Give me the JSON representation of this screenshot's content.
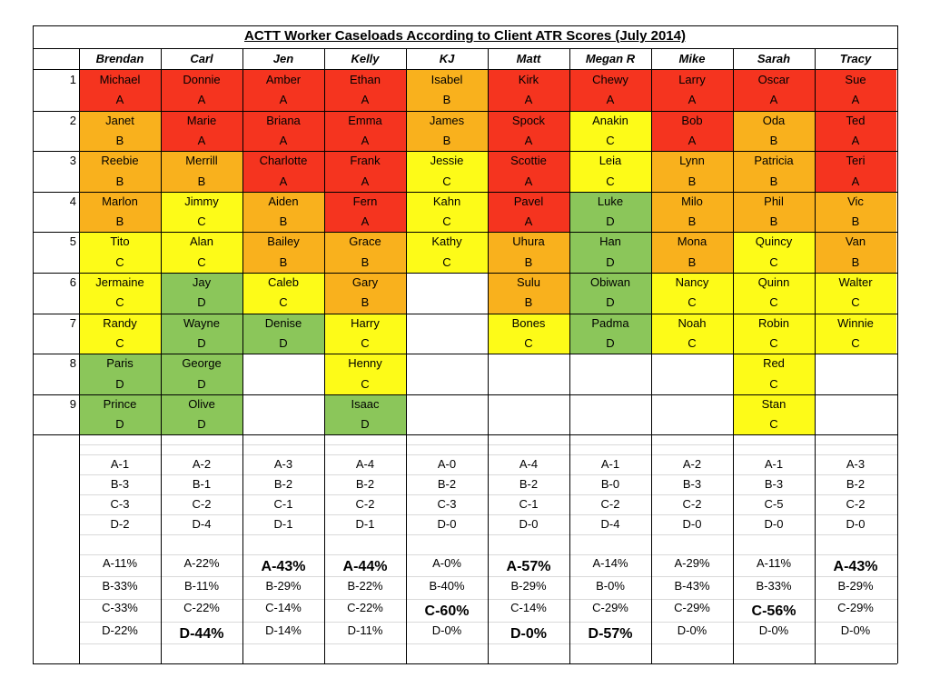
{
  "title": "ACTT Worker Caseloads According to Client ATR Scores (July 2014)",
  "colors": {
    "A": "#f5341f",
    "B": "#f9b11d",
    "C": "#fdfb18",
    "D": "#8bc65a"
  },
  "workers": [
    "Brendan",
    "Carl",
    "Jen",
    "Kelly",
    "KJ",
    "Matt",
    "Megan R",
    "Mike",
    "Sarah",
    "Tracy"
  ],
  "row_numbers": [
    "1",
    "2",
    "3",
    "4",
    "5",
    "6",
    "7",
    "8",
    "9"
  ],
  "clients": [
    [
      [
        "Michael",
        "A"
      ],
      [
        "Janet",
        "B"
      ],
      [
        "Reebie",
        "B"
      ],
      [
        "Marlon",
        "B"
      ],
      [
        "Tito",
        "C"
      ],
      [
        "Jermaine",
        "C"
      ],
      [
        "Randy",
        "C"
      ],
      [
        "Paris",
        "D"
      ],
      [
        "Prince",
        "D"
      ]
    ],
    [
      [
        "Donnie",
        "A"
      ],
      [
        "Marie",
        "A"
      ],
      [
        "Merrill",
        "B"
      ],
      [
        "Jimmy",
        "C"
      ],
      [
        "Alan",
        "C"
      ],
      [
        "Jay",
        "D"
      ],
      [
        "Wayne",
        "D"
      ],
      [
        "George",
        "D"
      ],
      [
        "Olive",
        "D"
      ]
    ],
    [
      [
        "Amber",
        "A"
      ],
      [
        "Briana",
        "A"
      ],
      [
        "Charlotte",
        "A"
      ],
      [
        "Aiden",
        "B"
      ],
      [
        "Bailey",
        "B"
      ],
      [
        "Caleb",
        "C"
      ],
      [
        "Denise",
        "D"
      ]
    ],
    [
      [
        "Ethan",
        "A"
      ],
      [
        "Emma",
        "A"
      ],
      [
        "Frank",
        "A"
      ],
      [
        "Fern",
        "A"
      ],
      [
        "Grace",
        "B"
      ],
      [
        "Gary",
        "B"
      ],
      [
        "Harry",
        "C"
      ],
      [
        "Henny",
        "C"
      ],
      [
        "Isaac",
        "D"
      ]
    ],
    [
      [
        "Isabel",
        "B"
      ],
      [
        "James",
        "B"
      ],
      [
        "Jessie",
        "C"
      ],
      [
        "Kahn",
        "C"
      ],
      [
        "Kathy",
        "C"
      ]
    ],
    [
      [
        "Kirk",
        "A"
      ],
      [
        "Spock",
        "A"
      ],
      [
        "Scottie",
        "A"
      ],
      [
        "Pavel",
        "A"
      ],
      [
        "Uhura",
        "B"
      ],
      [
        "Sulu",
        "B"
      ],
      [
        "Bones",
        "C"
      ]
    ],
    [
      [
        "Chewy",
        "A"
      ],
      [
        "Anakin",
        "C"
      ],
      [
        "Leia",
        "C"
      ],
      [
        "Luke",
        "D"
      ],
      [
        "Han",
        "D"
      ],
      [
        "Obiwan",
        "D"
      ],
      [
        "Padma",
        "D"
      ]
    ],
    [
      [
        "Larry",
        "A"
      ],
      [
        "Bob",
        "A"
      ],
      [
        "Lynn",
        "B"
      ],
      [
        "Milo",
        "B"
      ],
      [
        "Mona",
        "B"
      ],
      [
        "Nancy",
        "C"
      ],
      [
        "Noah",
        "C"
      ]
    ],
    [
      [
        "Oscar",
        "A"
      ],
      [
        "Oda",
        "B"
      ],
      [
        "Patricia",
        "B"
      ],
      [
        "Phil",
        "B"
      ],
      [
        "Quincy",
        "C"
      ],
      [
        "Quinn",
        "C"
      ],
      [
        "Robin",
        "C"
      ],
      [
        "Red",
        "C"
      ],
      [
        "Stan",
        "C"
      ]
    ],
    [
      [
        "Sue",
        "A"
      ],
      [
        "Ted",
        "A"
      ],
      [
        "Teri",
        "A"
      ],
      [
        "Vic",
        "B"
      ],
      [
        "Van",
        "B"
      ],
      [
        "Walter",
        "C"
      ],
      [
        "Winnie",
        "C"
      ]
    ]
  ],
  "counts": [
    [
      "A-1",
      "B-3",
      "C-3",
      "D-2"
    ],
    [
      "A-2",
      "B-1",
      "C-2",
      "D-4"
    ],
    [
      "A-3",
      "B-2",
      "C-1",
      "D-1"
    ],
    [
      "A-4",
      "B-2",
      "C-2",
      "D-1"
    ],
    [
      "A-0",
      "B-2",
      "C-3",
      "D-0"
    ],
    [
      "A-4",
      "B-2",
      "C-1",
      "D-0"
    ],
    [
      "A-1",
      "B-0",
      "C-2",
      "D-4"
    ],
    [
      "A-2",
      "B-3",
      "C-2",
      "D-0"
    ],
    [
      "A-1",
      "B-3",
      "C-5",
      "D-0"
    ],
    [
      "A-3",
      "B-2",
      "C-2",
      "D-0"
    ]
  ],
  "percents": [
    [
      "A-11%",
      "B-33%",
      "C-33%",
      "D-22%"
    ],
    [
      "A-22%",
      "B-11%",
      "C-22%",
      "D-44%"
    ],
    [
      "A-43%",
      "B-29%",
      "C-14%",
      "D-14%"
    ],
    [
      "A-44%",
      "B-22%",
      "C-22%",
      "D-11%"
    ],
    [
      "A-0%",
      "B-40%",
      "C-60%",
      "D-0%"
    ],
    [
      "A-57%",
      "B-29%",
      "C-14%",
      "D-0%"
    ],
    [
      "A-14%",
      "B-0%",
      "C-29%",
      "D-57%"
    ],
    [
      "A-29%",
      "B-43%",
      "C-29%",
      "D-0%"
    ],
    [
      "A-11%",
      "B-33%",
      "C-56%",
      "D-0%"
    ],
    [
      "A-43%",
      "B-29%",
      "C-29%",
      "D-0%"
    ]
  ],
  "highlighted_percents": [
    [
      1,
      3
    ],
    [
      2,
      0
    ],
    [
      3,
      0
    ],
    [
      4,
      2
    ],
    [
      5,
      0
    ],
    [
      5,
      3
    ],
    [
      6,
      3
    ],
    [
      8,
      2
    ],
    [
      9,
      0
    ]
  ]
}
